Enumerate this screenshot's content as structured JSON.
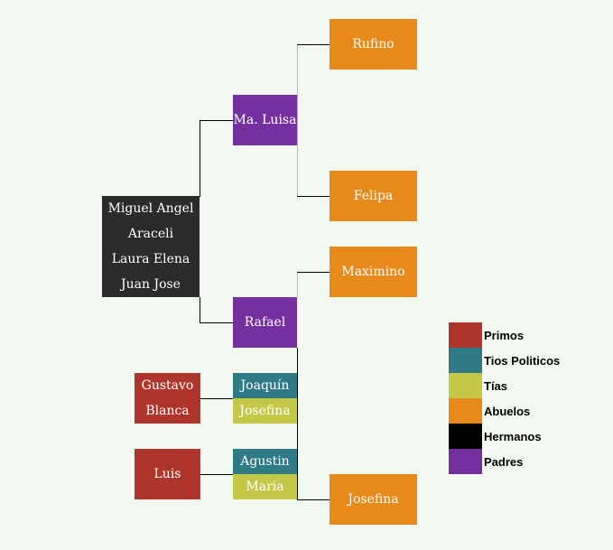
{
  "tree": {
    "siblings": [
      "Miguel Angel",
      "Araceli",
      "Laura Elena",
      "Juan Jose"
    ],
    "parents": {
      "mother": "Ma. Luisa",
      "father": "Rafael"
    },
    "grandparents": {
      "maternal_grandfather": "Rufino",
      "maternal_grandmother": "Felipa",
      "paternal_grandfather": "Maximino",
      "paternal_grandmother": "Josefina"
    },
    "aunt_couple_1": {
      "uncle_in_law": "Joaquín",
      "aunt": "Josefina",
      "cousins": [
        "Gustavo",
        "Blanca"
      ]
    },
    "aunt_couple_2": {
      "uncle_in_law": "Agustin",
      "aunt": "Maria",
      "cousins": [
        "Luis"
      ]
    }
  },
  "legend": [
    {
      "label": "Primos",
      "color": "#ae352b"
    },
    {
      "label": "Tios Politicos",
      "color": "#2e7b85"
    },
    {
      "label": "Tías",
      "color": "#c4c849"
    },
    {
      "label": "Abuelos",
      "color": "#e8891b"
    },
    {
      "label": "Hermanos",
      "color": "#000000"
    },
    {
      "label": "Padres",
      "color": "#74309f"
    }
  ]
}
